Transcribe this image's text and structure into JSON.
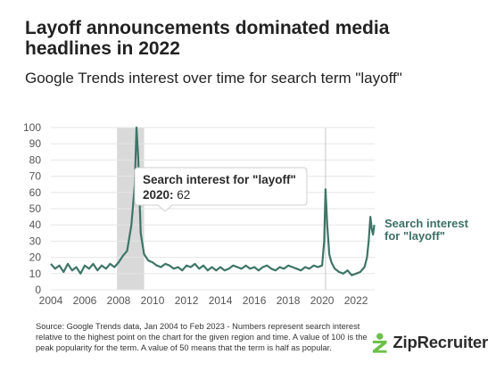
{
  "header": {
    "title": "Layoff announcements dominated media headlines in 2022",
    "subtitle": "Google Trends interest over time for search term \"layoff\""
  },
  "colors": {
    "line": "#3d7567",
    "grid": "#e6e6e6",
    "recession_band": "#d9d9d9",
    "label_green": "#3a7064",
    "logo_green": "#6cc04a"
  },
  "chart_data": {
    "type": "line",
    "title": "",
    "xlabel": "",
    "ylabel": "",
    "xlim": [
      2004,
      2023.1
    ],
    "ylim": [
      0,
      100
    ],
    "y_ticks": [
      0,
      10,
      20,
      30,
      40,
      50,
      60,
      70,
      80,
      90,
      100
    ],
    "x_ticks": [
      2004,
      2006,
      2008,
      2010,
      2012,
      2014,
      2016,
      2018,
      2020,
      2022
    ],
    "grid": true,
    "legend": "none",
    "shaded_regions": [
      {
        "from": 2007.9,
        "to": 2009.5
      }
    ],
    "reference_lines": [
      {
        "x": 2020.2
      }
    ],
    "series": [
      {
        "name": "Search interest for \"layoff\"",
        "x": [
          2004.0,
          2004.25,
          2004.5,
          2004.75,
          2005.0,
          2005.25,
          2005.5,
          2005.75,
          2006.0,
          2006.25,
          2006.5,
          2006.75,
          2007.0,
          2007.25,
          2007.5,
          2007.75,
          2008.0,
          2008.25,
          2008.5,
          2008.75,
          2008.95,
          2009.05,
          2009.15,
          2009.3,
          2009.5,
          2009.75,
          2010.0,
          2010.25,
          2010.5,
          2010.75,
          2011.0,
          2011.25,
          2011.5,
          2011.75,
          2012.0,
          2012.25,
          2012.5,
          2012.75,
          2013.0,
          2013.25,
          2013.5,
          2013.75,
          2014.0,
          2014.25,
          2014.5,
          2014.75,
          2015.0,
          2015.25,
          2015.5,
          2015.75,
          2016.0,
          2016.25,
          2016.5,
          2016.75,
          2017.0,
          2017.25,
          2017.5,
          2017.75,
          2018.0,
          2018.25,
          2018.5,
          2018.75,
          2019.0,
          2019.25,
          2019.5,
          2019.75,
          2020.0,
          2020.12,
          2020.2,
          2020.3,
          2020.42,
          2020.55,
          2020.75,
          2021.0,
          2021.25,
          2021.5,
          2021.75,
          2022.0,
          2022.25,
          2022.5,
          2022.65,
          2022.75,
          2022.85,
          2022.92,
          2023.0,
          2023.08
        ],
        "values": [
          16,
          13,
          15,
          11,
          16,
          12,
          14,
          10,
          15,
          13,
          16,
          12,
          15,
          13,
          16,
          14,
          17,
          21,
          24,
          40,
          65,
          100,
          82,
          35,
          22,
          18,
          17,
          15,
          14,
          16,
          15,
          13,
          14,
          12,
          15,
          14,
          16,
          13,
          15,
          12,
          14,
          12,
          14,
          12,
          13,
          15,
          14,
          13,
          15,
          13,
          14,
          12,
          14,
          15,
          13,
          12,
          14,
          13,
          15,
          14,
          13,
          12,
          14,
          13,
          15,
          14,
          15,
          30,
          62,
          40,
          22,
          17,
          13,
          11,
          10,
          12,
          9,
          10,
          11,
          14,
          20,
          30,
          45,
          38,
          34,
          40
        ]
      }
    ],
    "annotations": [
      {
        "title": "Search interest for \"layoff\"",
        "value_label": "2020:",
        "value": "62"
      }
    ],
    "series_label": "Search interest for \"layoff\""
  },
  "footer": {
    "source": "Source: Google Trends data, Jan 2004 to Feb 2023 - Numbers represent search interest relative to the highest point on the chart for the given region and time. A value of 100 is the peak popularity for the term. A value of 50 means that the term is half as popular.",
    "brand": "ZipRecruiter",
    "brand_icon": "ziprecruiter-logo-icon"
  }
}
